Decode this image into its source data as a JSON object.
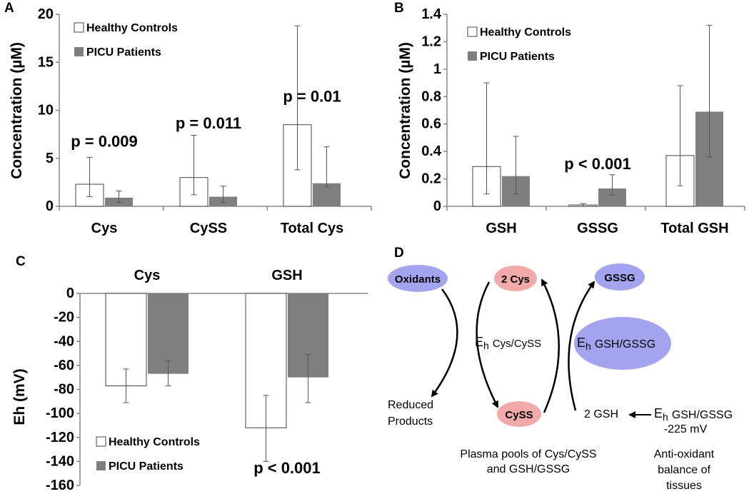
{
  "chart_data": [
    {
      "panel_label": "A",
      "type": "bar",
      "ylabel": "Concentration (µM)",
      "yticks": [
        "0",
        "5",
        "10",
        "15",
        "20"
      ],
      "ylim": [
        0,
        20
      ],
      "categories": [
        "Cys",
        "CySS",
        "Total Cys"
      ],
      "legend": [
        "Healthy Controls",
        "PICU Patients"
      ],
      "legend_position": "top-left",
      "series": [
        {
          "name": "Healthy Controls",
          "values": [
            2.3,
            3.0,
            8.5
          ],
          "err_low": [
            1.0,
            1.2,
            3.8
          ],
          "err_high": [
            5.1,
            7.4,
            18.8
          ]
        },
        {
          "name": "PICU Patients",
          "values": [
            0.9,
            1.0,
            2.4
          ],
          "err_low": [
            0.4,
            0.4,
            2.0
          ],
          "err_high": [
            1.6,
            2.1,
            6.2
          ]
        }
      ],
      "annotations": [
        {
          "text": "p = 0.009",
          "category": 0,
          "y": 6.2
        },
        {
          "text": "p = 0.011",
          "category": 1,
          "y": 8.1
        },
        {
          "text": "p = 0.01",
          "category": 2,
          "y": 10.9
        }
      ]
    },
    {
      "panel_label": "B",
      "type": "bar",
      "ylabel": "Concentration (µM)",
      "yticks": [
        "0",
        "0.2",
        "0.4",
        "0.6",
        "0.8",
        "1",
        "1.2",
        "1.4"
      ],
      "ylim": [
        0,
        1.4
      ],
      "categories": [
        "GSH",
        "GSSG",
        "Total GSH"
      ],
      "legend": [
        "Healthy Controls",
        "PICU Patients"
      ],
      "legend_position": "top-left",
      "series": [
        {
          "name": "Healthy Controls",
          "values": [
            0.29,
            0.01,
            0.37
          ],
          "err_low": [
            0.09,
            0.0,
            0.15
          ],
          "err_high": [
            0.9,
            0.02,
            0.88
          ]
        },
        {
          "name": "PICU Patients",
          "values": [
            0.22,
            0.13,
            0.69
          ],
          "err_low": [
            0.09,
            0.08,
            0.36
          ],
          "err_high": [
            0.51,
            0.23,
            1.32
          ]
        }
      ],
      "annotations": [
        {
          "text": "p < 0.001",
          "category": 1,
          "y": 0.27
        }
      ]
    },
    {
      "panel_label": "C",
      "type": "bar",
      "ylabel": "Eh (mV)",
      "yticks": [
        "0",
        "-20",
        "-40",
        "-60",
        "-80",
        "-100",
        "-120",
        "-140",
        "-160"
      ],
      "ylim": [
        -160,
        0
      ],
      "categories": [
        "Cys",
        "GSH"
      ],
      "legend": [
        "Healthy Controls",
        "PICU Patients"
      ],
      "legend_position": "bottom-left",
      "series": [
        {
          "name": "Healthy Controls",
          "values": [
            -77,
            -112
          ],
          "err_low": [
            -91,
            -140
          ],
          "err_high": [
            -63,
            -85
          ]
        },
        {
          "name": "PICU Patients",
          "values": [
            -67,
            -70
          ],
          "err_low": [
            -77,
            -91
          ],
          "err_high": [
            -56,
            -51
          ]
        }
      ],
      "annotations": [
        {
          "text": "p < 0.001",
          "category": 1,
          "y": -150
        }
      ]
    }
  ],
  "diagram": {
    "panel_label": "D",
    "oxidants": "Oxidants",
    "two_cys": "2 Cys",
    "gssg": "GSSG",
    "eh_label": "E",
    "eh_sub": "h",
    "eh_cys_pair": "Cys/CySS",
    "eh_gsh_pair": "GSH/GSSG",
    "reduced_products_1": "Reduced",
    "reduced_products_2": "Products",
    "cyss": "CySS",
    "two_gsh": "2 GSH",
    "gsh_gssg_value": "-225 mV",
    "pools_1": "Plasma pools of Cys/CySS",
    "pools_2": "and GSH/GSSG",
    "balance_1": "Anti-oxidant",
    "balance_2": "balance of",
    "balance_3": "tissues"
  },
  "colors": {
    "controls_fill": "#ffffff",
    "patients_fill": "#7f7f7f",
    "bar_stroke": "#444444",
    "axis": "#888888",
    "blue_node": "#a3a3f0",
    "pink_node": "#f2a9a9"
  }
}
